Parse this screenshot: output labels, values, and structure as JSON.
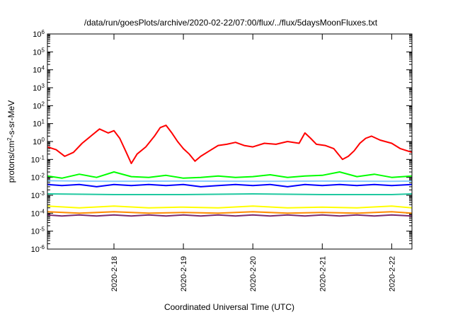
{
  "chart_data": {
    "type": "line",
    "title": "/data/run/goesPlots/archive/2020-02-22/07:00/flux/../flux/5daysMoonFluxes.txt",
    "xlabel": "Coordinated Universal Time (UTC)",
    "ylabel": "protons/cm²-s-sr-MeV",
    "ylabel_parts": {
      "before": "protons/cm",
      "superscript": "2",
      "after": "-s-sr-MeV"
    },
    "yscale": "log",
    "ylim_exponent": [
      -6,
      6
    ],
    "y_ticks": [
      {
        "base": "10",
        "exp": "-6"
      },
      {
        "base": "10",
        "exp": "-5"
      },
      {
        "base": "10",
        "exp": "-4"
      },
      {
        "base": "10",
        "exp": "-3"
      },
      {
        "base": "10",
        "exp": "-2"
      },
      {
        "base": "10",
        "exp": "-1"
      },
      {
        "base": "10",
        "exp": "0"
      },
      {
        "base": "10",
        "exp": "1"
      },
      {
        "base": "10",
        "exp": "2"
      },
      {
        "base": "10",
        "exp": "3"
      },
      {
        "base": "10",
        "exp": "4"
      },
      {
        "base": "10",
        "exp": "5"
      },
      {
        "base": "10",
        "exp": "6"
      }
    ],
    "xlim_days": [
      "2020-02-17 01:00",
      "2020-02-22 07:00"
    ],
    "x_ticks": [
      {
        "label": "2020-2-18",
        "day": "2020-02-18"
      },
      {
        "label": "2020-2-19",
        "day": "2020-02-19"
      },
      {
        "label": "2020-2-20",
        "day": "2020-02-20"
      },
      {
        "label": "2020-2-21",
        "day": "2020-02-21"
      },
      {
        "label": "2020-2-22",
        "day": "2020-02-22"
      }
    ],
    "grid": false,
    "legend": "none",
    "series": [
      {
        "color": "#ff0000",
        "points": [
          [
            "2020-02-17 01:00",
            0.5
          ],
          [
            "2020-02-17 04:00",
            0.35
          ],
          [
            "2020-02-17 07:00",
            0.15
          ],
          [
            "2020-02-17 10:00",
            0.25
          ],
          [
            "2020-02-17 13:00",
            0.8
          ],
          [
            "2020-02-17 16:00",
            2
          ],
          [
            "2020-02-17 19:00",
            5
          ],
          [
            "2020-02-17 22:00",
            3
          ],
          [
            "2020-02-18 00:00",
            4
          ],
          [
            "2020-02-18 02:00",
            1.5
          ],
          [
            "2020-02-18 04:00",
            0.3
          ],
          [
            "2020-02-18 06:00",
            0.06
          ],
          [
            "2020-02-18 08:00",
            0.2
          ],
          [
            "2020-02-18 11:00",
            0.5
          ],
          [
            "2020-02-18 14:00",
            2
          ],
          [
            "2020-02-18 16:00",
            6
          ],
          [
            "2020-02-18 18:00",
            8
          ],
          [
            "2020-02-18 20:00",
            3
          ],
          [
            "2020-02-18 22:00",
            1
          ],
          [
            "2020-02-19 00:00",
            0.4
          ],
          [
            "2020-02-19 02:00",
            0.2
          ],
          [
            "2020-02-19 04:00",
            0.08
          ],
          [
            "2020-02-19 06:00",
            0.15
          ],
          [
            "2020-02-19 09:00",
            0.3
          ],
          [
            "2020-02-19 12:00",
            0.6
          ],
          [
            "2020-02-19 15:00",
            0.7
          ],
          [
            "2020-02-19 18:00",
            0.9
          ],
          [
            "2020-02-19 21:00",
            0.6
          ],
          [
            "2020-02-20 00:00",
            0.5
          ],
          [
            "2020-02-20 04:00",
            0.8
          ],
          [
            "2020-02-20 08:00",
            0.7
          ],
          [
            "2020-02-20 12:00",
            1
          ],
          [
            "2020-02-20 16:00",
            0.8
          ],
          [
            "2020-02-20 18:00",
            3
          ],
          [
            "2020-02-20 20:00",
            1.5
          ],
          [
            "2020-02-20 22:00",
            0.7
          ],
          [
            "2020-02-21 01:00",
            0.6
          ],
          [
            "2020-02-21 04:00",
            0.4
          ],
          [
            "2020-02-21 07:00",
            0.1
          ],
          [
            "2020-02-21 09:00",
            0.15
          ],
          [
            "2020-02-21 11:00",
            0.3
          ],
          [
            "2020-02-21 13:00",
            0.8
          ],
          [
            "2020-02-21 15:00",
            1.5
          ],
          [
            "2020-02-21 17:00",
            2
          ],
          [
            "2020-02-21 20:00",
            1.2
          ],
          [
            "2020-02-22 00:00",
            0.8
          ],
          [
            "2020-02-22 03:00",
            0.4
          ],
          [
            "2020-02-22 07:00",
            0.25
          ]
        ]
      },
      {
        "color": "#00ff00",
        "points": [
          [
            "2020-02-17 01:00",
            0.012
          ],
          [
            "2020-02-17 06:00",
            0.009
          ],
          [
            "2020-02-17 12:00",
            0.015
          ],
          [
            "2020-02-17 18:00",
            0.01
          ],
          [
            "2020-02-18 00:00",
            0.02
          ],
          [
            "2020-02-18 06:00",
            0.011
          ],
          [
            "2020-02-18 12:00",
            0.01
          ],
          [
            "2020-02-18 18:00",
            0.013
          ],
          [
            "2020-02-19 00:00",
            0.009
          ],
          [
            "2020-02-19 06:00",
            0.01
          ],
          [
            "2020-02-19 12:00",
            0.012
          ],
          [
            "2020-02-19 18:00",
            0.01
          ],
          [
            "2020-02-20 00:00",
            0.011
          ],
          [
            "2020-02-20 06:00",
            0.014
          ],
          [
            "2020-02-20 12:00",
            0.01
          ],
          [
            "2020-02-20 18:00",
            0.012
          ],
          [
            "2020-02-21 00:00",
            0.013
          ],
          [
            "2020-02-21 06:00",
            0.02
          ],
          [
            "2020-02-21 12:00",
            0.011
          ],
          [
            "2020-02-21 18:00",
            0.015
          ],
          [
            "2020-02-22 00:00",
            0.01
          ],
          [
            "2020-02-22 07:00",
            0.012
          ]
        ]
      },
      {
        "color": "#0000ff",
        "points": [
          [
            "2020-02-17 01:00",
            0.004
          ],
          [
            "2020-02-17 06:00",
            0.0035
          ],
          [
            "2020-02-17 12:00",
            0.004
          ],
          [
            "2020-02-17 18:00",
            0.003
          ],
          [
            "2020-02-18 00:00",
            0.004
          ],
          [
            "2020-02-18 06:00",
            0.0035
          ],
          [
            "2020-02-18 12:00",
            0.004
          ],
          [
            "2020-02-18 18:00",
            0.0035
          ],
          [
            "2020-02-19 00:00",
            0.004
          ],
          [
            "2020-02-19 06:00",
            0.003
          ],
          [
            "2020-02-19 12:00",
            0.0035
          ],
          [
            "2020-02-19 18:00",
            0.004
          ],
          [
            "2020-02-20 00:00",
            0.0035
          ],
          [
            "2020-02-20 06:00",
            0.004
          ],
          [
            "2020-02-20 12:00",
            0.003
          ],
          [
            "2020-02-20 18:00",
            0.004
          ],
          [
            "2020-02-21 00:00",
            0.0035
          ],
          [
            "2020-02-21 06:00",
            0.004
          ],
          [
            "2020-02-21 12:00",
            0.0035
          ],
          [
            "2020-02-21 18:00",
            0.004
          ],
          [
            "2020-02-22 00:00",
            0.0035
          ],
          [
            "2020-02-22 07:00",
            0.004
          ]
        ]
      },
      {
        "color": "#87cefa",
        "points": [
          [
            "2020-02-17 01:00",
            0.0065
          ],
          [
            "2020-02-18 00:00",
            0.006
          ],
          [
            "2020-02-19 00:00",
            0.0062
          ],
          [
            "2020-02-20 00:00",
            0.006
          ],
          [
            "2020-02-21 00:00",
            0.0062
          ],
          [
            "2020-02-22 00:00",
            0.006
          ],
          [
            "2020-02-22 07:00",
            0.0062
          ]
        ]
      },
      {
        "color": "#20c8a0",
        "points": [
          [
            "2020-02-17 01:00",
            0.0012
          ],
          [
            "2020-02-18 00:00",
            0.0011
          ],
          [
            "2020-02-19 00:00",
            0.0011
          ],
          [
            "2020-02-20 00:00",
            0.0012
          ],
          [
            "2020-02-21 00:00",
            0.0011
          ],
          [
            "2020-02-22 00:00",
            0.0011
          ],
          [
            "2020-02-22 07:00",
            0.0012
          ]
        ]
      },
      {
        "color": "#ffff00",
        "points": [
          [
            "2020-02-17 01:00",
            0.00025
          ],
          [
            "2020-02-17 12:00",
            0.0002
          ],
          [
            "2020-02-18 00:00",
            0.00025
          ],
          [
            "2020-02-18 12:00",
            0.0002
          ],
          [
            "2020-02-19 00:00",
            0.00022
          ],
          [
            "2020-02-19 12:00",
            0.0002
          ],
          [
            "2020-02-20 00:00",
            0.00025
          ],
          [
            "2020-02-20 12:00",
            0.0002
          ],
          [
            "2020-02-21 00:00",
            0.00022
          ],
          [
            "2020-02-21 12:00",
            0.0002
          ],
          [
            "2020-02-22 00:00",
            0.00025
          ],
          [
            "2020-02-22 07:00",
            0.0002
          ]
        ]
      },
      {
        "color": "#ff8c00",
        "points": [
          [
            "2020-02-17 01:00",
            0.00012
          ],
          [
            "2020-02-17 12:00",
            0.0001
          ],
          [
            "2020-02-18 00:00",
            0.00012
          ],
          [
            "2020-02-18 12:00",
            0.0001
          ],
          [
            "2020-02-19 00:00",
            0.00011
          ],
          [
            "2020-02-19 12:00",
            0.0001
          ],
          [
            "2020-02-20 00:00",
            0.00012
          ],
          [
            "2020-02-20 12:00",
            0.0001
          ],
          [
            "2020-02-21 00:00",
            0.00011
          ],
          [
            "2020-02-21 12:00",
            0.0001
          ],
          [
            "2020-02-22 00:00",
            0.00012
          ],
          [
            "2020-02-22 07:00",
            0.0001
          ]
        ]
      },
      {
        "color": "#7b2a6e",
        "points": [
          [
            "2020-02-17 01:00",
            8e-05
          ],
          [
            "2020-02-17 06:00",
            7e-05
          ],
          [
            "2020-02-17 12:00",
            8e-05
          ],
          [
            "2020-02-17 18:00",
            7e-05
          ],
          [
            "2020-02-18 00:00",
            8e-05
          ],
          [
            "2020-02-18 06:00",
            7e-05
          ],
          [
            "2020-02-18 12:00",
            8e-05
          ],
          [
            "2020-02-18 18:00",
            7e-05
          ],
          [
            "2020-02-19 00:00",
            8e-05
          ],
          [
            "2020-02-19 06:00",
            7e-05
          ],
          [
            "2020-02-19 12:00",
            8e-05
          ],
          [
            "2020-02-19 18:00",
            7e-05
          ],
          [
            "2020-02-20 00:00",
            8e-05
          ],
          [
            "2020-02-20 06:00",
            7e-05
          ],
          [
            "2020-02-20 12:00",
            8e-05
          ],
          [
            "2020-02-20 18:00",
            7e-05
          ],
          [
            "2020-02-21 00:00",
            8e-05
          ],
          [
            "2020-02-21 06:00",
            7e-05
          ],
          [
            "2020-02-21 12:00",
            8e-05
          ],
          [
            "2020-02-21 18:00",
            7e-05
          ],
          [
            "2020-02-22 00:00",
            8e-05
          ],
          [
            "2020-02-22 07:00",
            7e-05
          ]
        ]
      }
    ]
  }
}
